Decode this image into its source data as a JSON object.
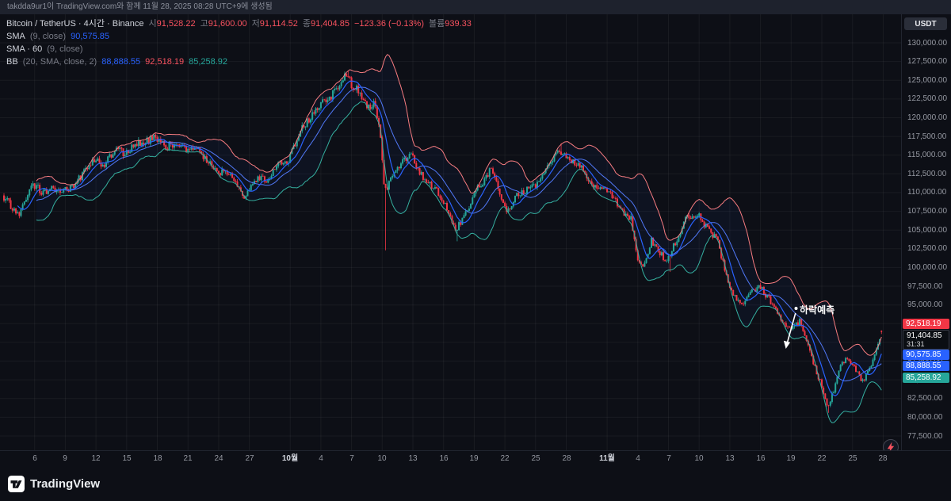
{
  "attribution": {
    "text": "takdda9ur1이 TradingView.com와 함께 11월 28, 2025 08:28 UTC+9에 생성됨"
  },
  "header": {
    "symbol_line": {
      "symbol": "Bitcoin / TetherUS · 4시간 · Binance",
      "o_label": "시",
      "o": "91,528.22",
      "h_label": "고",
      "h": "91,600.00",
      "l_label": "저",
      "l": "91,114.52",
      "c_label": "종",
      "c": "91,404.85",
      "change": "−123.36 (−0.13%)",
      "vol_label": "볼륨",
      "vol": "939.33"
    },
    "sma_line": {
      "name": "SMA",
      "params": "(9, close)",
      "value": "90,575.85"
    },
    "sma60_line": {
      "name": "SMA · 60",
      "params": "(9, close)"
    },
    "bb_line": {
      "name": "BB",
      "params": "(20, SMA, close, 2)",
      "basis": "88,888.55",
      "upper": "92,518.19",
      "lower": "85,258.92"
    }
  },
  "currency_button": {
    "label": "USDT"
  },
  "annotation": {
    "text": "하락예측"
  },
  "price_axis": {
    "labels": [
      "130,000.00",
      "127,500.00",
      "125,000.00",
      "122,500.00",
      "120,000.00",
      "117,500.00",
      "115,000.00",
      "112,500.00",
      "110,000.00",
      "107,500.00",
      "105,000.00",
      "102,500.00",
      "100,000.00",
      "97,500.00",
      "95,000.00",
      "92,500.00",
      "90,000.00",
      "87,500.00",
      "85,000.00",
      "82,500.00",
      "80,000.00",
      "77,500.00"
    ],
    "badges": [
      {
        "name": "bb-upper-price-badge",
        "label": "92,518.19",
        "price": 92518.19,
        "bg": "#f23645",
        "fg": "#ffffff"
      },
      {
        "name": "last-price-badge",
        "label": "91,404.85",
        "sub": "31:31",
        "price": 91404.85,
        "bg": "#0b0e13",
        "fg": "#ffffff"
      },
      {
        "name": "sma-price-badge",
        "label": "90,575.85",
        "price": 90575.85,
        "bg": "#2962ff",
        "fg": "#ffffff"
      },
      {
        "name": "bb-basis-price-badge",
        "label": "88,888.55",
        "price": 88888.55,
        "bg": "#2962ff",
        "fg": "#ffffff"
      },
      {
        "name": "bb-lower-price-badge",
        "label": "85,258.92",
        "price": 85258.92,
        "bg": "#26a69a",
        "fg": "#ffffff"
      }
    ]
  },
  "time_axis": {
    "ticks": [
      {
        "label": "6",
        "day": 3
      },
      {
        "label": "9",
        "day": 6
      },
      {
        "label": "12",
        "day": 9
      },
      {
        "label": "15",
        "day": 12
      },
      {
        "label": "18",
        "day": 15
      },
      {
        "label": "21",
        "day": 18
      },
      {
        "label": "24",
        "day": 21
      },
      {
        "label": "27",
        "day": 24
      },
      {
        "label": "10월",
        "day": 28,
        "month": true
      },
      {
        "label": "4",
        "day": 31
      },
      {
        "label": "7",
        "day": 34
      },
      {
        "label": "10",
        "day": 37
      },
      {
        "label": "13",
        "day": 40
      },
      {
        "label": "16",
        "day": 43
      },
      {
        "label": "19",
        "day": 46
      },
      {
        "label": "22",
        "day": 49
      },
      {
        "label": "25",
        "day": 52
      },
      {
        "label": "28",
        "day": 55
      },
      {
        "label": "11월",
        "day": 59,
        "month": true
      },
      {
        "label": "4",
        "day": 62
      },
      {
        "label": "7",
        "day": 65
      },
      {
        "label": "10",
        "day": 68
      },
      {
        "label": "13",
        "day": 71
      },
      {
        "label": "16",
        "day": 74
      },
      {
        "label": "19",
        "day": 77
      },
      {
        "label": "22",
        "day": 80
      },
      {
        "label": "25",
        "day": 83
      },
      {
        "label": "28",
        "day": 86
      }
    ]
  },
  "footer": {
    "logo_text": "TradingView"
  },
  "chart_data": {
    "type": "candlestick",
    "symbol": "Bitcoin / TetherUS",
    "exchange": "Binance",
    "interval": "4시간",
    "quote_currency": "USDT",
    "ylim": [
      77500,
      130000
    ],
    "y_step": 2500,
    "candles_per_day": 6,
    "price_path_keyframes": [
      [
        0,
        109600
      ],
      [
        1,
        108000
      ],
      [
        1.7,
        107300
      ],
      [
        3,
        111200
      ],
      [
        4,
        110000
      ],
      [
        5,
        110600
      ],
      [
        6,
        110200
      ],
      [
        7,
        111000
      ],
      [
        9,
        114400
      ],
      [
        10,
        113600
      ],
      [
        11,
        115900
      ],
      [
        12,
        115200
      ],
      [
        13,
        116400
      ],
      [
        15,
        117300
      ],
      [
        16,
        116000
      ],
      [
        17,
        116800
      ],
      [
        18,
        115500
      ],
      [
        19,
        115900
      ],
      [
        20,
        114400
      ],
      [
        21,
        112600
      ],
      [
        22,
        112900
      ],
      [
        23,
        111000
      ],
      [
        23.6,
        108900
      ],
      [
        25,
        112300
      ],
      [
        26,
        111500
      ],
      [
        27,
        114200
      ],
      [
        28,
        114400
      ],
      [
        29,
        117800
      ],
      [
        30,
        119800
      ],
      [
        31,
        121700
      ],
      [
        32,
        122400
      ],
      [
        33,
        124600
      ],
      [
        33.6,
        125900
      ],
      [
        34.3,
        124200
      ],
      [
        35,
        123400
      ],
      [
        35.8,
        121500
      ],
      [
        36.5,
        121800
      ],
      [
        37,
        117500
      ],
      [
        37.4,
        109800
      ],
      [
        38,
        112200
      ],
      [
        39,
        114000
      ],
      [
        40,
        115300
      ],
      [
        40.7,
        113100
      ],
      [
        41.5,
        111300
      ],
      [
        42.5,
        110300
      ],
      [
        43.3,
        108300
      ],
      [
        44.3,
        104800
      ],
      [
        45.3,
        107300
      ],
      [
        46.5,
        110600
      ],
      [
        47.8,
        113000
      ],
      [
        48.6,
        110100
      ],
      [
        49.4,
        107400
      ],
      [
        50.5,
        109900
      ],
      [
        51.5,
        110500
      ],
      [
        52.5,
        111200
      ],
      [
        53.5,
        113900
      ],
      [
        54.4,
        115900
      ],
      [
        55.3,
        114300
      ],
      [
        56.5,
        113600
      ],
      [
        57.5,
        111100
      ],
      [
        58.5,
        110700
      ],
      [
        59.5,
        109900
      ],
      [
        60.5,
        107600
      ],
      [
        61.5,
        106400
      ],
      [
        62.2,
        101000
      ],
      [
        62.8,
        100400
      ],
      [
        63.5,
        103700
      ],
      [
        64.3,
        102000
      ],
      [
        65,
        100700
      ],
      [
        65.8,
        103200
      ],
      [
        66.8,
        106400
      ],
      [
        68,
        107100
      ],
      [
        69,
        105200
      ],
      [
        70,
        103400
      ],
      [
        70.8,
        98900
      ],
      [
        71.5,
        96300
      ],
      [
        72.3,
        94800
      ],
      [
        73.2,
        96900
      ],
      [
        74.2,
        97300
      ],
      [
        75.2,
        95400
      ],
      [
        76.2,
        93200
      ],
      [
        77.2,
        91500
      ],
      [
        78,
        92900
      ],
      [
        78.8,
        89800
      ],
      [
        79.5,
        86700
      ],
      [
        80.2,
        83900
      ],
      [
        80.8,
        81200
      ],
      [
        81.3,
        83500
      ],
      [
        82,
        86900
      ],
      [
        82.8,
        88000
      ],
      [
        83.5,
        86200
      ],
      [
        84.2,
        84600
      ],
      [
        84.8,
        86300
      ],
      [
        85.2,
        87600
      ],
      [
        85.6,
        89800
      ],
      [
        86,
        91400
      ]
    ],
    "wick_events": [
      {
        "day": 33.7,
        "high": 126200
      },
      {
        "day": 37.3,
        "low": 102300
      },
      {
        "day": 44.4,
        "low": 103500
      },
      {
        "day": 54.5,
        "high": 116600
      },
      {
        "day": 65.1,
        "low": 99400
      },
      {
        "day": 80.7,
        "low": 80600
      }
    ],
    "last_candle": {
      "open": 91528.22,
      "high": 91600.0,
      "low": 91114.52,
      "close": 91404.85,
      "volume": 939.33,
      "change": -123.36,
      "change_pct": -0.13
    },
    "indicators": [
      {
        "type": "SMA",
        "length": 9,
        "value": 90575.85
      },
      {
        "type": "BB",
        "length": 20,
        "mult": 2,
        "basis": 88888.55,
        "upper": 92518.19,
        "lower": 85258.92
      }
    ],
    "colors": {
      "up": "#26a69a",
      "down": "#f23645",
      "sma": "#2962ff",
      "bb_basis": "#5179f8",
      "bb_upper": "#f77c80",
      "bb_lower": "#35b0a0",
      "band_fill": "rgba(41,98,255,0.05)"
    }
  }
}
